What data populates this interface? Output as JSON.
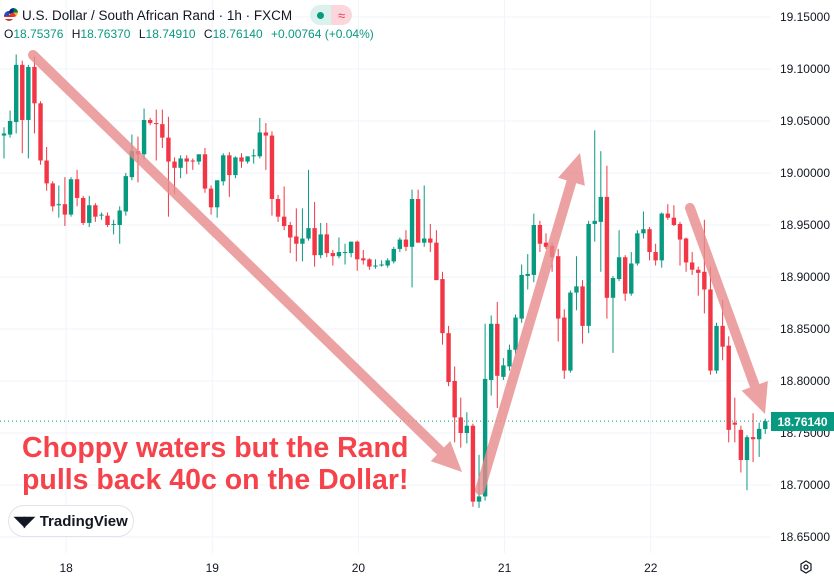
{
  "header": {
    "title": "U.S. Dollar / South African Rand · 1h · FXCM",
    "flag_icon": "usd-zar-flag-icon",
    "status_market_icon": "green-dot-icon",
    "status_delay_icon": "≈",
    "ohlc": {
      "o_label": "O",
      "o": "18.75376",
      "h_label": "H",
      "h": "18.76370",
      "l_label": "L",
      "l": "18.74910",
      "c_label": "C",
      "c": "18.76140",
      "change": "+0.00764 (+0.04%)"
    }
  },
  "annotation": {
    "line1": "Choppy waters but the Rand",
    "line2": "pulls back 40c on the Dollar!",
    "color": "#f5424b",
    "arrow_color": "#e88b8b"
  },
  "logo": {
    "mark": "TV",
    "text": "TradingView"
  },
  "current_price_label": "18.76140",
  "colors": {
    "up": "#089981",
    "down": "#f23645",
    "grid": "#f0f3fa"
  },
  "chart_data": {
    "type": "candlestick",
    "title": "U.S. Dollar / South African Rand · 1h · FXCM",
    "interval": "1h",
    "grid": true,
    "ylim": [
      18.65,
      19.15
    ],
    "y_ticks": [
      "19.15000",
      "19.10000",
      "19.05000",
      "19.00000",
      "18.95000",
      "18.90000",
      "18.85000",
      "18.80000",
      "18.75000",
      "18.70000",
      "18.65000"
    ],
    "x_ticks": [
      "18",
      "19",
      "20",
      "21",
      "22"
    ],
    "last_price": 18.7614,
    "candles_ohlc": [
      [
        19.036,
        19.044,
        19.014,
        19.038
      ],
      [
        19.037,
        19.06,
        19.034,
        19.05
      ],
      [
        19.049,
        19.114,
        19.038,
        19.104
      ],
      [
        19.104,
        19.108,
        19.019,
        19.051
      ],
      [
        19.051,
        19.104,
        19.014,
        19.102
      ],
      [
        19.102,
        19.112,
        19.038,
        19.067
      ],
      [
        19.067,
        19.069,
        19.008,
        19.012
      ],
      [
        19.012,
        19.025,
        18.983,
        18.99
      ],
      [
        18.99,
        18.992,
        18.963,
        18.968
      ],
      [
        18.969,
        18.988,
        18.957,
        18.97
      ],
      [
        18.97,
        18.996,
        18.949,
        18.96
      ],
      [
        18.96,
        18.996,
        18.958,
        18.994
      ],
      [
        18.994,
        19.003,
        18.968,
        18.976
      ],
      [
        18.976,
        18.978,
        18.95,
        18.952
      ],
      [
        18.952,
        18.978,
        18.948,
        18.969
      ],
      [
        18.969,
        18.971,
        18.953,
        18.958
      ],
      [
        18.96,
        18.962,
        18.955,
        18.96
      ],
      [
        18.959,
        18.962,
        18.948,
        18.95
      ],
      [
        18.951,
        18.955,
        18.941,
        18.951
      ],
      [
        18.95,
        18.968,
        18.932,
        18.964
      ],
      [
        18.963,
        19.0,
        18.959,
        18.997
      ],
      [
        18.996,
        19.037,
        18.993,
        19.021
      ],
      [
        19.021,
        19.035,
        18.991,
        19.018
      ],
      [
        19.018,
        19.062,
        19.013,
        19.051
      ],
      [
        19.051,
        19.053,
        19.046,
        19.048
      ],
      [
        19.048,
        19.061,
        19.012,
        19.047
      ],
      [
        19.047,
        19.061,
        19.024,
        19.034
      ],
      [
        19.034,
        19.054,
        18.958,
        19.011
      ],
      [
        19.011,
        19.015,
        18.98,
        19.005
      ],
      [
        19.005,
        19.017,
        18.995,
        19.014
      ],
      [
        19.014,
        19.017,
        18.999,
        19.011
      ],
      [
        19.012,
        19.014,
        19.003,
        19.011
      ],
      [
        19.011,
        19.018,
        19.008,
        19.018
      ],
      [
        19.018,
        19.024,
        18.981,
        18.985
      ],
      [
        18.985,
        18.988,
        18.96,
        18.967
      ],
      [
        18.967,
        18.993,
        18.957,
        18.993
      ],
      [
        18.992,
        19.019,
        18.988,
        19.017
      ],
      [
        19.017,
        19.02,
        18.977,
        18.998
      ],
      [
        18.998,
        19.016,
        18.995,
        19.015
      ],
      [
        19.015,
        19.019,
        19.005,
        19.011
      ],
      [
        19.011,
        19.016,
        19.009,
        19.016
      ],
      [
        19.016,
        19.023,
        19.009,
        19.017
      ],
      [
        19.016,
        19.053,
        19.014,
        19.039
      ],
      [
        19.039,
        19.048,
        19.003,
        19.036
      ],
      [
        19.036,
        19.04,
        18.959,
        18.975
      ],
      [
        18.975,
        18.979,
        18.953,
        18.958
      ],
      [
        18.958,
        18.987,
        18.945,
        18.949
      ],
      [
        18.95,
        18.953,
        18.923,
        18.938
      ],
      [
        18.939,
        18.966,
        18.915,
        18.932
      ],
      [
        18.932,
        18.966,
        18.915,
        18.937
      ],
      [
        18.937,
        19.003,
        18.935,
        18.947
      ],
      [
        18.947,
        18.972,
        18.91,
        18.921
      ],
      [
        18.921,
        18.952,
        18.918,
        18.941
      ],
      [
        18.941,
        18.952,
        18.919,
        18.923
      ],
      [
        18.923,
        18.926,
        18.911,
        18.92
      ],
      [
        18.92,
        18.938,
        18.918,
        18.924
      ],
      [
        18.924,
        18.932,
        18.912,
        18.924
      ],
      [
        18.923,
        18.934,
        18.919,
        18.934
      ],
      [
        18.934,
        18.935,
        18.906,
        18.917
      ],
      [
        18.918,
        18.926,
        18.912,
        18.916
      ],
      [
        18.917,
        18.918,
        18.907,
        18.91
      ],
      [
        18.91,
        18.917,
        18.908,
        18.911
      ],
      [
        18.911,
        18.916,
        18.91,
        18.912
      ],
      [
        18.911,
        18.918,
        18.909,
        18.916
      ],
      [
        18.915,
        18.929,
        18.913,
        18.927
      ],
      [
        18.927,
        18.938,
        18.924,
        18.936
      ],
      [
        18.936,
        18.945,
        18.925,
        18.929
      ],
      [
        18.929,
        18.984,
        18.89,
        18.975
      ],
      [
        18.975,
        18.984,
        18.933,
        18.933
      ],
      [
        18.933,
        18.988,
        18.929,
        18.937
      ],
      [
        18.937,
        18.951,
        18.924,
        18.933
      ],
      [
        18.933,
        18.945,
        18.897,
        18.897
      ],
      [
        18.898,
        18.905,
        18.835,
        18.846
      ],
      [
        18.846,
        18.853,
        18.795,
        18.799
      ],
      [
        18.8,
        18.814,
        18.741,
        18.765
      ],
      [
        18.765,
        18.784,
        18.736,
        18.75
      ],
      [
        18.75,
        18.77,
        18.74,
        18.757
      ],
      [
        18.757,
        18.759,
        18.679,
        18.684
      ],
      [
        18.684,
        18.729,
        18.678,
        18.689
      ],
      [
        18.689,
        18.855,
        18.685,
        18.802
      ],
      [
        18.801,
        18.863,
        18.786,
        18.855
      ],
      [
        18.855,
        18.876,
        18.774,
        18.805
      ],
      [
        18.804,
        18.822,
        18.801,
        18.815
      ],
      [
        18.814,
        18.835,
        18.81,
        18.83
      ],
      [
        18.83,
        18.864,
        18.826,
        18.861
      ],
      [
        18.86,
        18.912,
        18.856,
        18.902
      ],
      [
        18.901,
        18.922,
        18.888,
        18.903
      ],
      [
        18.902,
        18.961,
        18.895,
        18.95
      ],
      [
        18.95,
        18.954,
        18.924,
        18.932
      ],
      [
        18.933,
        18.942,
        18.927,
        18.929
      ],
      [
        18.93,
        18.933,
        18.905,
        18.919
      ],
      [
        18.92,
        18.927,
        18.838,
        18.86
      ],
      [
        18.861,
        18.869,
        18.802,
        18.81
      ],
      [
        18.81,
        18.887,
        18.808,
        18.885
      ],
      [
        18.885,
        18.92,
        18.868,
        18.891
      ],
      [
        18.891,
        18.897,
        18.836,
        18.853
      ],
      [
        18.853,
        18.954,
        18.846,
        18.951
      ],
      [
        18.951,
        19.041,
        18.934,
        18.954
      ],
      [
        18.953,
        19.021,
        18.905,
        18.977
      ],
      [
        18.977,
        19.007,
        18.86,
        18.88
      ],
      [
        18.88,
        18.901,
        18.827,
        18.899
      ],
      [
        18.898,
        18.945,
        18.896,
        18.919
      ],
      [
        18.919,
        18.921,
        18.877,
        18.884
      ],
      [
        18.884,
        18.924,
        18.882,
        18.913
      ],
      [
        18.913,
        18.945,
        18.911,
        18.942
      ],
      [
        18.942,
        18.963,
        18.937,
        18.946
      ],
      [
        18.946,
        18.948,
        18.916,
        18.924
      ],
      [
        18.924,
        18.932,
        18.911,
        18.916
      ],
      [
        18.916,
        18.962,
        18.909,
        18.961
      ],
      [
        18.961,
        18.97,
        18.955,
        18.957
      ],
      [
        18.957,
        18.969,
        18.949,
        18.95
      ],
      [
        18.951,
        18.953,
        18.911,
        18.936
      ],
      [
        18.937,
        18.938,
        18.905,
        18.914
      ],
      [
        18.914,
        18.924,
        18.902,
        18.907
      ],
      [
        18.907,
        18.91,
        18.882,
        18.904
      ],
      [
        18.905,
        18.955,
        18.865,
        18.888
      ],
      [
        18.888,
        18.91,
        18.806,
        18.81
      ],
      [
        18.81,
        18.856,
        18.807,
        18.853
      ],
      [
        18.853,
        18.878,
        18.82,
        18.833
      ],
      [
        18.834,
        18.843,
        18.741,
        18.753
      ],
      [
        18.76,
        18.784,
        18.741,
        18.758
      ],
      [
        18.753,
        18.757,
        18.712,
        18.724
      ],
      [
        18.724,
        18.748,
        18.695,
        18.746
      ],
      [
        18.746,
        18.769,
        18.722,
        18.744
      ],
      [
        18.744,
        18.76,
        18.727,
        18.754
      ],
      [
        18.75376,
        18.7637,
        18.7491,
        18.7614
      ]
    ]
  },
  "settings_icon": "gear-icon"
}
